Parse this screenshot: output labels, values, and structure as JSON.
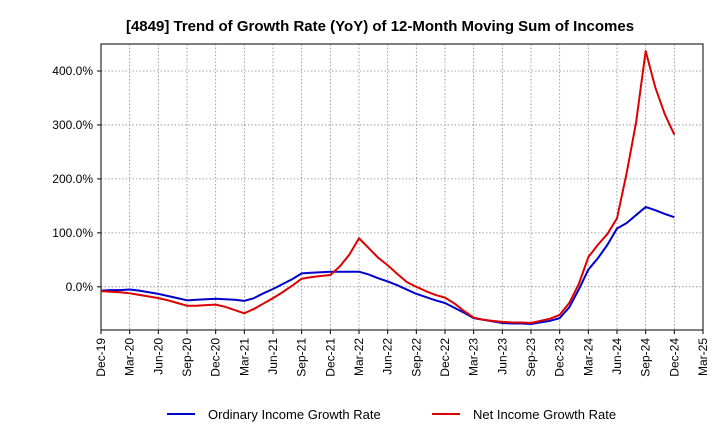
{
  "chart_data": {
    "type": "line",
    "title": "[4849]  Trend of Growth Rate (YoY) of 12-Month Moving Sum of Incomes",
    "xlabel": "",
    "ylabel": "",
    "x": [
      "Dec-19",
      "Jan-20",
      "Feb-20",
      "Mar-20",
      "Apr-20",
      "May-20",
      "Jun-20",
      "Jul-20",
      "Aug-20",
      "Sep-20",
      "Oct-20",
      "Nov-20",
      "Dec-20",
      "Jan-21",
      "Feb-21",
      "Mar-21",
      "Apr-21",
      "May-21",
      "Jun-21",
      "Jul-21",
      "Aug-21",
      "Sep-21",
      "Oct-21",
      "Nov-21",
      "Dec-21",
      "Jan-22",
      "Feb-22",
      "Mar-22",
      "Apr-22",
      "May-22",
      "Jun-22",
      "Jul-22",
      "Aug-22",
      "Sep-22",
      "Oct-22",
      "Nov-22",
      "Dec-22",
      "Jan-23",
      "Feb-23",
      "Mar-23",
      "Apr-23",
      "May-23",
      "Jun-23",
      "Jul-23",
      "Aug-23",
      "Sep-23",
      "Oct-23",
      "Nov-23",
      "Dec-23",
      "Jan-24",
      "Feb-24",
      "Mar-24",
      "Apr-24",
      "May-24",
      "Jun-24",
      "Jul-24",
      "Aug-24",
      "Sep-24",
      "Oct-24",
      "Nov-24",
      "Dec-24",
      "Jan-25",
      "Feb-25",
      "Mar-25"
    ],
    "x_tick_labels": [
      "Dec-19",
      "Mar-20",
      "Jun-20",
      "Sep-20",
      "Dec-20",
      "Mar-21",
      "Jun-21",
      "Sep-21",
      "Dec-21",
      "Mar-22",
      "Jun-22",
      "Sep-22",
      "Dec-22",
      "Mar-23",
      "Jun-23",
      "Sep-23",
      "Dec-23",
      "Mar-24",
      "Jun-24",
      "Sep-24",
      "Dec-24",
      "Mar-25"
    ],
    "y_tick_labels": [
      "0.0%",
      "100.0%",
      "200.0%",
      "300.0%",
      "400.0%"
    ],
    "ylim": [
      -80,
      450
    ],
    "yticks": [
      0,
      100,
      200,
      300,
      400
    ],
    "grid": true,
    "legend_position": "bottom",
    "series": [
      {
        "name": "Ordinary Income Growth Rate",
        "color": "#0000cc",
        "values": [
          -7,
          -6,
          -6,
          -5,
          -7,
          -10,
          -13,
          -17,
          -21,
          -25,
          -24,
          -23,
          -22,
          -23,
          -24,
          -26,
          -21,
          -12,
          -4,
          5,
          14,
          25,
          26,
          27,
          28,
          28,
          28,
          28,
          23,
          16,
          10,
          3,
          -5,
          -13,
          -19,
          -25,
          -30,
          -39,
          -48,
          -58,
          -61,
          -64,
          -67,
          -68,
          -68,
          -69,
          -66,
          -63,
          -58,
          -38,
          -5,
          32,
          53,
          78,
          108,
          118,
          133,
          148,
          142,
          135,
          129,
          null,
          null,
          null
        ]
      },
      {
        "name": "Net Income Growth Rate",
        "color": "#dd0000",
        "values": [
          -8,
          -9,
          -10,
          -12,
          -15,
          -18,
          -21,
          -25,
          -30,
          -35,
          -35,
          -34,
          -33,
          -37,
          -43,
          -49,
          -41,
          -31,
          -21,
          -10,
          2,
          15,
          18,
          20,
          22,
          38,
          60,
          90,
          72,
          54,
          40,
          24,
          9,
          0,
          -8,
          -15,
          -20,
          -31,
          -45,
          -57,
          -61,
          -63,
          -65,
          -66,
          -66,
          -67,
          -63,
          -59,
          -52,
          -30,
          5,
          55,
          78,
          98,
          127,
          210,
          305,
          437,
          370,
          320,
          282,
          null,
          null,
          null
        ]
      }
    ]
  }
}
